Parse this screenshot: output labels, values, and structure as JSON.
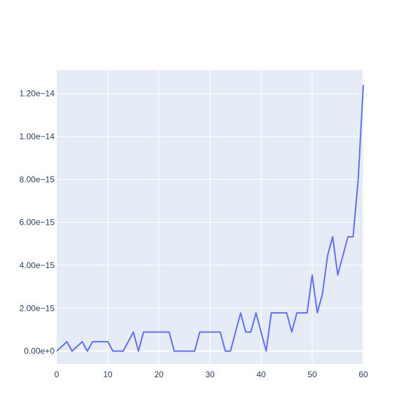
{
  "chart_data": {
    "type": "line",
    "title": "",
    "xlabel": "",
    "ylabel": "",
    "xlim": [
      0,
      60
    ],
    "ylim": [
      -6e-16,
      1.31e-14
    ],
    "grid": true,
    "legend": "none",
    "x_ticks": [
      {
        "value": 0,
        "label": "0"
      },
      {
        "value": 10,
        "label": "10"
      },
      {
        "value": 20,
        "label": "20"
      },
      {
        "value": 30,
        "label": "30"
      },
      {
        "value": 40,
        "label": "40"
      },
      {
        "value": 50,
        "label": "50"
      },
      {
        "value": 60,
        "label": "60"
      }
    ],
    "y_ticks": [
      {
        "value": 0,
        "label": "0.00e+0"
      },
      {
        "value": 2e-15,
        "label": "2.00e−15"
      },
      {
        "value": 4e-15,
        "label": "4.00e−15"
      },
      {
        "value": 6e-15,
        "label": "6.00e−15"
      },
      {
        "value": 8e-15,
        "label": "8.00e−15"
      },
      {
        "value": 1e-14,
        "label": "1.00e−14"
      },
      {
        "value": 1.2e-14,
        "label": "1.20e−14"
      }
    ],
    "series": [
      {
        "color": "#636efa",
        "x": [
          0,
          1,
          2,
          3,
          4,
          5,
          6,
          7,
          8,
          9,
          10,
          11,
          12,
          13,
          14,
          15,
          16,
          17,
          18,
          19,
          20,
          21,
          22,
          23,
          24,
          25,
          26,
          27,
          28,
          29,
          30,
          31,
          32,
          33,
          34,
          35,
          36,
          37,
          38,
          39,
          40,
          41,
          42,
          43,
          44,
          45,
          46,
          47,
          48,
          49,
          50,
          51,
          52,
          53,
          54,
          55,
          56,
          57,
          58,
          59,
          60
        ],
        "y": [
          0,
          2.2e-16,
          4.4e-16,
          0,
          2.2e-16,
          4.4e-16,
          0,
          4.4e-16,
          4.4e-16,
          4.4e-16,
          4.4e-16,
          0,
          0,
          0,
          4.4e-16,
          8.9e-16,
          0,
          8.9e-16,
          8.9e-16,
          8.9e-16,
          8.9e-16,
          8.9e-16,
          8.9e-16,
          0,
          0,
          0,
          0,
          0,
          8.9e-16,
          8.9e-16,
          8.9e-16,
          8.9e-16,
          8.9e-16,
          0,
          0,
          8.9e-16,
          1.78e-15,
          8.9e-16,
          8.9e-16,
          1.78e-15,
          8.9e-16,
          0,
          1.78e-15,
          1.78e-15,
          1.78e-15,
          1.78e-15,
          8.9e-16,
          1.78e-15,
          1.78e-15,
          1.78e-15,
          3.55e-15,
          1.78e-15,
          2.66e-15,
          4.44e-15,
          5.33e-15,
          3.55e-15,
          4.44e-15,
          5.33e-15,
          5.33e-15,
          7.99e-15,
          1.24e-14
        ]
      }
    ]
  }
}
